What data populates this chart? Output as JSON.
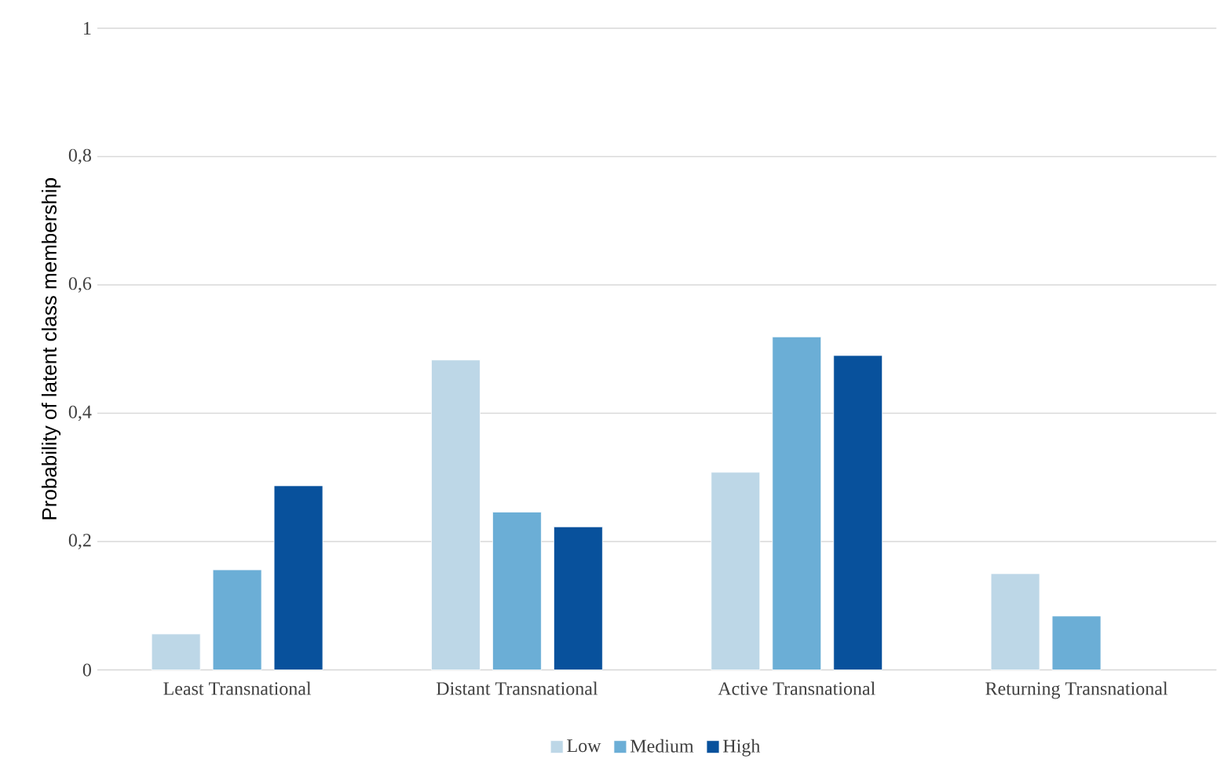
{
  "chart_data": {
    "type": "bar",
    "ylabel": "Probability of latent class membership",
    "categories": [
      "Least Transnational",
      "Distant Transnational",
      "Active Transnational",
      "Returning Transnational"
    ],
    "series": [
      {
        "name": "Low",
        "color": "#bdd7e7",
        "values": [
          0.056,
          0.483,
          0.308,
          0.15
        ]
      },
      {
        "name": "Medium",
        "color": "#6baed6",
        "values": [
          0.156,
          0.246,
          0.519,
          0.084
        ]
      },
      {
        "name": "High",
        "color": "#08519c",
        "values": [
          0.287,
          0.223,
          0.49,
          null
        ]
      }
    ],
    "ylim": [
      0,
      1
    ],
    "yticks": [
      0,
      {
        "value": 0.2,
        "label": "0,2"
      },
      {
        "value": 0.4,
        "label": "0,4"
      },
      {
        "value": 0.6,
        "label": "0,6"
      },
      {
        "value": 0.8,
        "label": "0,8"
      },
      1
    ],
    "grid": "y",
    "legend": "bottom"
  }
}
